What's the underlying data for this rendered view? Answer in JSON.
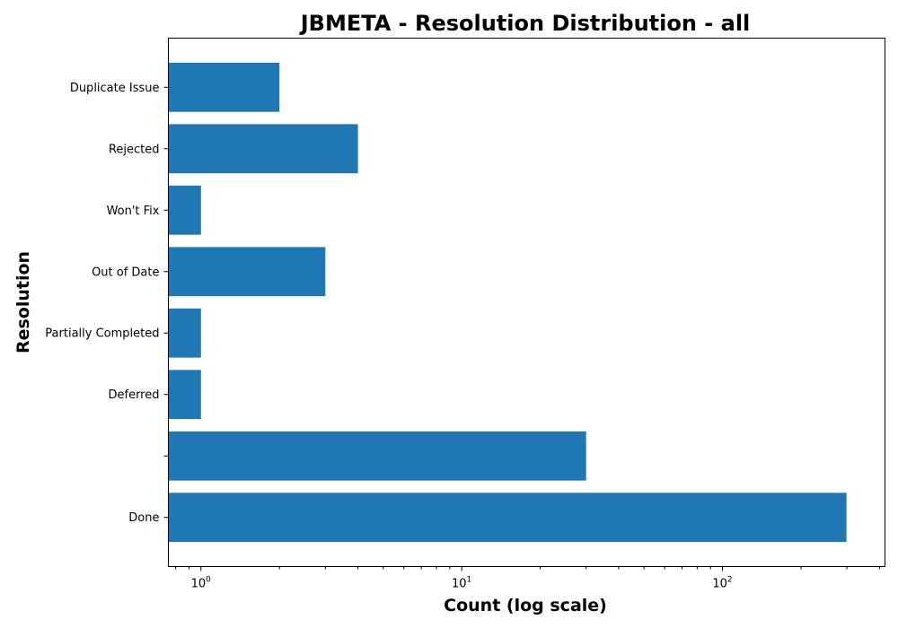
{
  "chart_data": {
    "type": "bar",
    "orientation": "horizontal",
    "title": "JBMETA - Resolution Distribution - all",
    "xlabel": "Count (log scale)",
    "ylabel": "Resolution",
    "x_scale": "log",
    "xlim": [
      0.75,
      420
    ],
    "x_tick_values": [
      1,
      10,
      100
    ],
    "x_tick_labels": [
      {
        "base": "10",
        "exp": "0"
      },
      {
        "base": "10",
        "exp": "1"
      },
      {
        "base": "10",
        "exp": "2"
      }
    ],
    "categories": [
      "Done",
      "",
      "Deferred",
      "Partially Completed",
      "Out of Date",
      "Won't Fix",
      "Rejected",
      "Duplicate Issue"
    ],
    "values": [
      299,
      30,
      1,
      1,
      3,
      1,
      4,
      2
    ],
    "bar_color": "#1f77b4",
    "grid": false,
    "legend": "none"
  }
}
